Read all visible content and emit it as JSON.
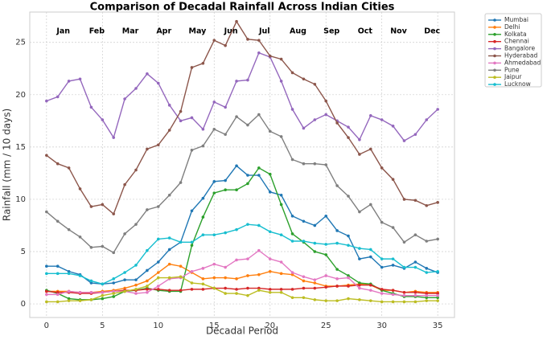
{
  "chart_data": {
    "type": "line",
    "title": "Comparison of Decadal Rainfall Across Indian Cities",
    "x_label": "Decadal Period",
    "y_label": "Rainfall (mm / 10 days)",
    "month_labels": [
      "Jan",
      "Feb",
      "Mar",
      "Apr",
      "May",
      "Jun",
      "Jul",
      "Aug",
      "Sep",
      "Oct",
      "Nov",
      "Dec"
    ],
    "x": [
      0,
      1,
      2,
      3,
      4,
      5,
      6,
      7,
      8,
      9,
      10,
      11,
      12,
      13,
      14,
      15,
      16,
      17,
      18,
      19,
      20,
      21,
      22,
      23,
      24,
      25,
      26,
      27,
      28,
      29,
      30,
      31,
      32,
      33,
      34,
      35
    ],
    "xlim": [
      -1.5,
      36.5
    ],
    "xticks": [
      0,
      5,
      10,
      15,
      20,
      25,
      30,
      35
    ],
    "ylim": [
      -1.3,
      27.9
    ],
    "yticks": [
      0,
      5,
      10,
      15,
      20,
      25
    ],
    "grid": true,
    "legend": "outside right",
    "series": [
      {
        "name": "Mumbai",
        "color": "#1f77b4",
        "values": [
          3.6,
          3.6,
          3.1,
          2.8,
          2.0,
          1.9,
          2.0,
          2.3,
          2.3,
          3.2,
          4.0,
          5.2,
          5.9,
          8.9,
          10.1,
          11.7,
          11.8,
          13.2,
          12.3,
          12.3,
          10.7,
          10.4,
          8.4,
          7.9,
          7.5,
          8.4,
          7.0,
          6.5,
          4.3,
          4.5,
          3.5,
          3.7,
          3.4,
          4.0,
          3.4,
          3.0
        ]
      },
      {
        "name": "Delhi",
        "color": "#ff7f0e",
        "values": [
          1.2,
          1.2,
          1.2,
          1.1,
          1.1,
          1.2,
          1.3,
          1.5,
          1.8,
          2.2,
          3.0,
          3.8,
          3.6,
          3.0,
          2.4,
          2.5,
          2.5,
          2.4,
          2.7,
          2.8,
          3.1,
          2.9,
          2.8,
          2.2,
          2.0,
          1.7,
          1.7,
          1.8,
          1.9,
          1.8,
          1.3,
          1.3,
          1.1,
          1.2,
          1.1,
          1.1
        ]
      },
      {
        "name": "Kolkata",
        "color": "#2ca02c",
        "values": [
          1.3,
          1.0,
          0.5,
          0.4,
          0.4,
          0.5,
          0.7,
          1.2,
          1.3,
          1.5,
          1.3,
          1.2,
          1.2,
          5.6,
          8.3,
          10.6,
          10.9,
          10.9,
          11.5,
          13.0,
          12.4,
          9.5,
          6.7,
          5.9,
          5.0,
          4.7,
          3.3,
          2.7,
          2.0,
          1.9,
          1.3,
          1.0,
          0.7,
          0.7,
          0.6,
          0.6
        ]
      },
      {
        "name": "Chennai",
        "color": "#d62728",
        "values": [
          1.2,
          1.1,
          1.1,
          1.0,
          1.0,
          1.1,
          1.2,
          1.3,
          1.3,
          1.4,
          1.4,
          1.3,
          1.3,
          1.4,
          1.4,
          1.5,
          1.5,
          1.4,
          1.5,
          1.5,
          1.4,
          1.4,
          1.4,
          1.5,
          1.5,
          1.6,
          1.7,
          1.7,
          1.8,
          1.8,
          1.4,
          1.3,
          1.1,
          1.1,
          1.0,
          1.0
        ]
      },
      {
        "name": "Bangalore",
        "color": "#9467bd",
        "values": [
          19.4,
          19.8,
          21.3,
          21.5,
          18.8,
          17.6,
          15.9,
          19.6,
          20.6,
          22.0,
          21.1,
          19.0,
          17.5,
          17.8,
          16.7,
          19.3,
          18.8,
          21.3,
          21.4,
          24.0,
          23.6,
          21.3,
          18.6,
          16.8,
          17.6,
          18.1,
          17.5,
          16.9,
          15.7,
          18.0,
          17.6,
          17.0,
          15.6,
          16.2,
          17.6,
          18.6
        ]
      },
      {
        "name": "Hyderabad",
        "color": "#8c564b",
        "values": [
          14.2,
          13.4,
          13.0,
          11.0,
          9.3,
          9.5,
          8.6,
          11.4,
          12.8,
          14.8,
          15.2,
          16.6,
          18.4,
          22.6,
          23.0,
          25.2,
          24.7,
          27.0,
          25.3,
          25.2,
          23.7,
          23.4,
          22.1,
          21.5,
          21.0,
          19.4,
          17.3,
          15.9,
          14.3,
          14.8,
          13.0,
          11.9,
          10.0,
          9.9,
          9.4,
          9.7
        ]
      },
      {
        "name": "Ahmedabad",
        "color": "#e377c2",
        "values": [
          0.9,
          0.9,
          1.2,
          1.1,
          1.1,
          1.1,
          1.2,
          1.2,
          1.0,
          1.1,
          1.7,
          2.4,
          2.5,
          3.1,
          3.4,
          3.8,
          3.5,
          4.2,
          4.3,
          5.1,
          4.3,
          4.0,
          3.0,
          2.6,
          2.3,
          2.7,
          2.4,
          2.5,
          1.5,
          1.3,
          1.0,
          0.9,
          0.8,
          0.8,
          0.8,
          0.8
        ]
      },
      {
        "name": "Pune",
        "color": "#7f7f7f",
        "values": [
          8.8,
          7.9,
          7.1,
          6.4,
          5.4,
          5.5,
          4.9,
          6.7,
          7.6,
          9.0,
          9.3,
          10.4,
          11.6,
          14.7,
          15.1,
          16.7,
          16.2,
          17.9,
          17.1,
          18.1,
          16.5,
          16.0,
          13.8,
          13.4,
          13.4,
          13.3,
          11.3,
          10.3,
          8.8,
          9.5,
          7.8,
          7.3,
          5.9,
          6.6,
          6.0,
          6.2
        ]
      },
      {
        "name": "Jaipur",
        "color": "#bcbd22",
        "values": [
          0.2,
          0.2,
          0.3,
          0.3,
          0.4,
          0.8,
          1.0,
          1.2,
          1.4,
          1.7,
          2.5,
          2.5,
          2.6,
          2.0,
          1.9,
          1.5,
          1.0,
          1.0,
          0.8,
          1.3,
          1.1,
          1.1,
          0.6,
          0.6,
          0.4,
          0.3,
          0.3,
          0.5,
          0.4,
          0.3,
          0.2,
          0.2,
          0.2,
          0.2,
          0.3,
          0.3
        ]
      },
      {
        "name": "Lucknow",
        "color": "#17becf",
        "values": [
          2.9,
          2.9,
          2.9,
          2.7,
          2.2,
          1.9,
          2.4,
          3.0,
          3.7,
          5.1,
          6.2,
          6.3,
          5.9,
          5.9,
          6.6,
          6.6,
          6.8,
          7.1,
          7.6,
          7.5,
          6.9,
          6.6,
          6.0,
          6.0,
          5.8,
          5.7,
          5.8,
          5.6,
          5.3,
          5.2,
          4.3,
          4.3,
          3.5,
          3.5,
          3.0,
          3.1
        ]
      }
    ]
  }
}
